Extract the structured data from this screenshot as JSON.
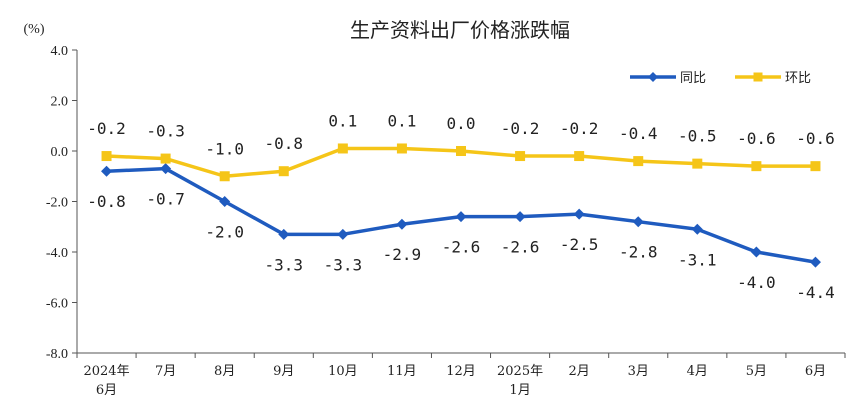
{
  "chart_data": {
    "type": "line",
    "title": "生产资料出厂价格涨跌幅",
    "ylabel": "(%)",
    "xlabel": "",
    "ylim": [
      -8,
      4
    ],
    "yticks": [
      "4.0",
      "2.0",
      "0.0",
      "-2.0",
      "-4.0",
      "-6.0",
      "-8.0"
    ],
    "categories": [
      [
        "2024年",
        "6月"
      ],
      [
        "7月"
      ],
      [
        "8月"
      ],
      [
        "9月"
      ],
      [
        "10月"
      ],
      [
        "11月"
      ],
      [
        "12月"
      ],
      [
        "2025年",
        "1月"
      ],
      [
        "2月"
      ],
      [
        "3月"
      ],
      [
        "4月"
      ],
      [
        "5月"
      ],
      [
        "6月"
      ]
    ],
    "legend_position": "top-right",
    "grid": false,
    "series": [
      {
        "name": "同比",
        "color": "#1f5bbf",
        "marker": "diamond",
        "values": [
          -0.8,
          -0.7,
          -2.0,
          -3.3,
          -3.3,
          -2.9,
          -2.6,
          -2.6,
          -2.5,
          -2.8,
          -3.1,
          -4.0,
          -4.4
        ],
        "labels": [
          "-0.8",
          "-0.7",
          "-2.0",
          "-3.3",
          "-3.3",
          "-2.9",
          "-2.6",
          "-2.6",
          "-2.5",
          "-2.8",
          "-3.1",
          "-4.0",
          "-4.4"
        ]
      },
      {
        "name": "环比",
        "color": "#f5c518",
        "marker": "square",
        "values": [
          -0.2,
          -0.3,
          -1.0,
          -0.8,
          0.1,
          0.1,
          0.0,
          -0.2,
          -0.2,
          -0.4,
          -0.5,
          -0.6,
          -0.6
        ],
        "labels": [
          "-0.2",
          "-0.3",
          "-1.0",
          "-0.8",
          "0.1",
          "0.1",
          "0.0",
          "-0.2",
          "-0.2",
          "-0.4",
          "-0.5",
          "-0.6",
          "-0.6"
        ]
      }
    ]
  }
}
